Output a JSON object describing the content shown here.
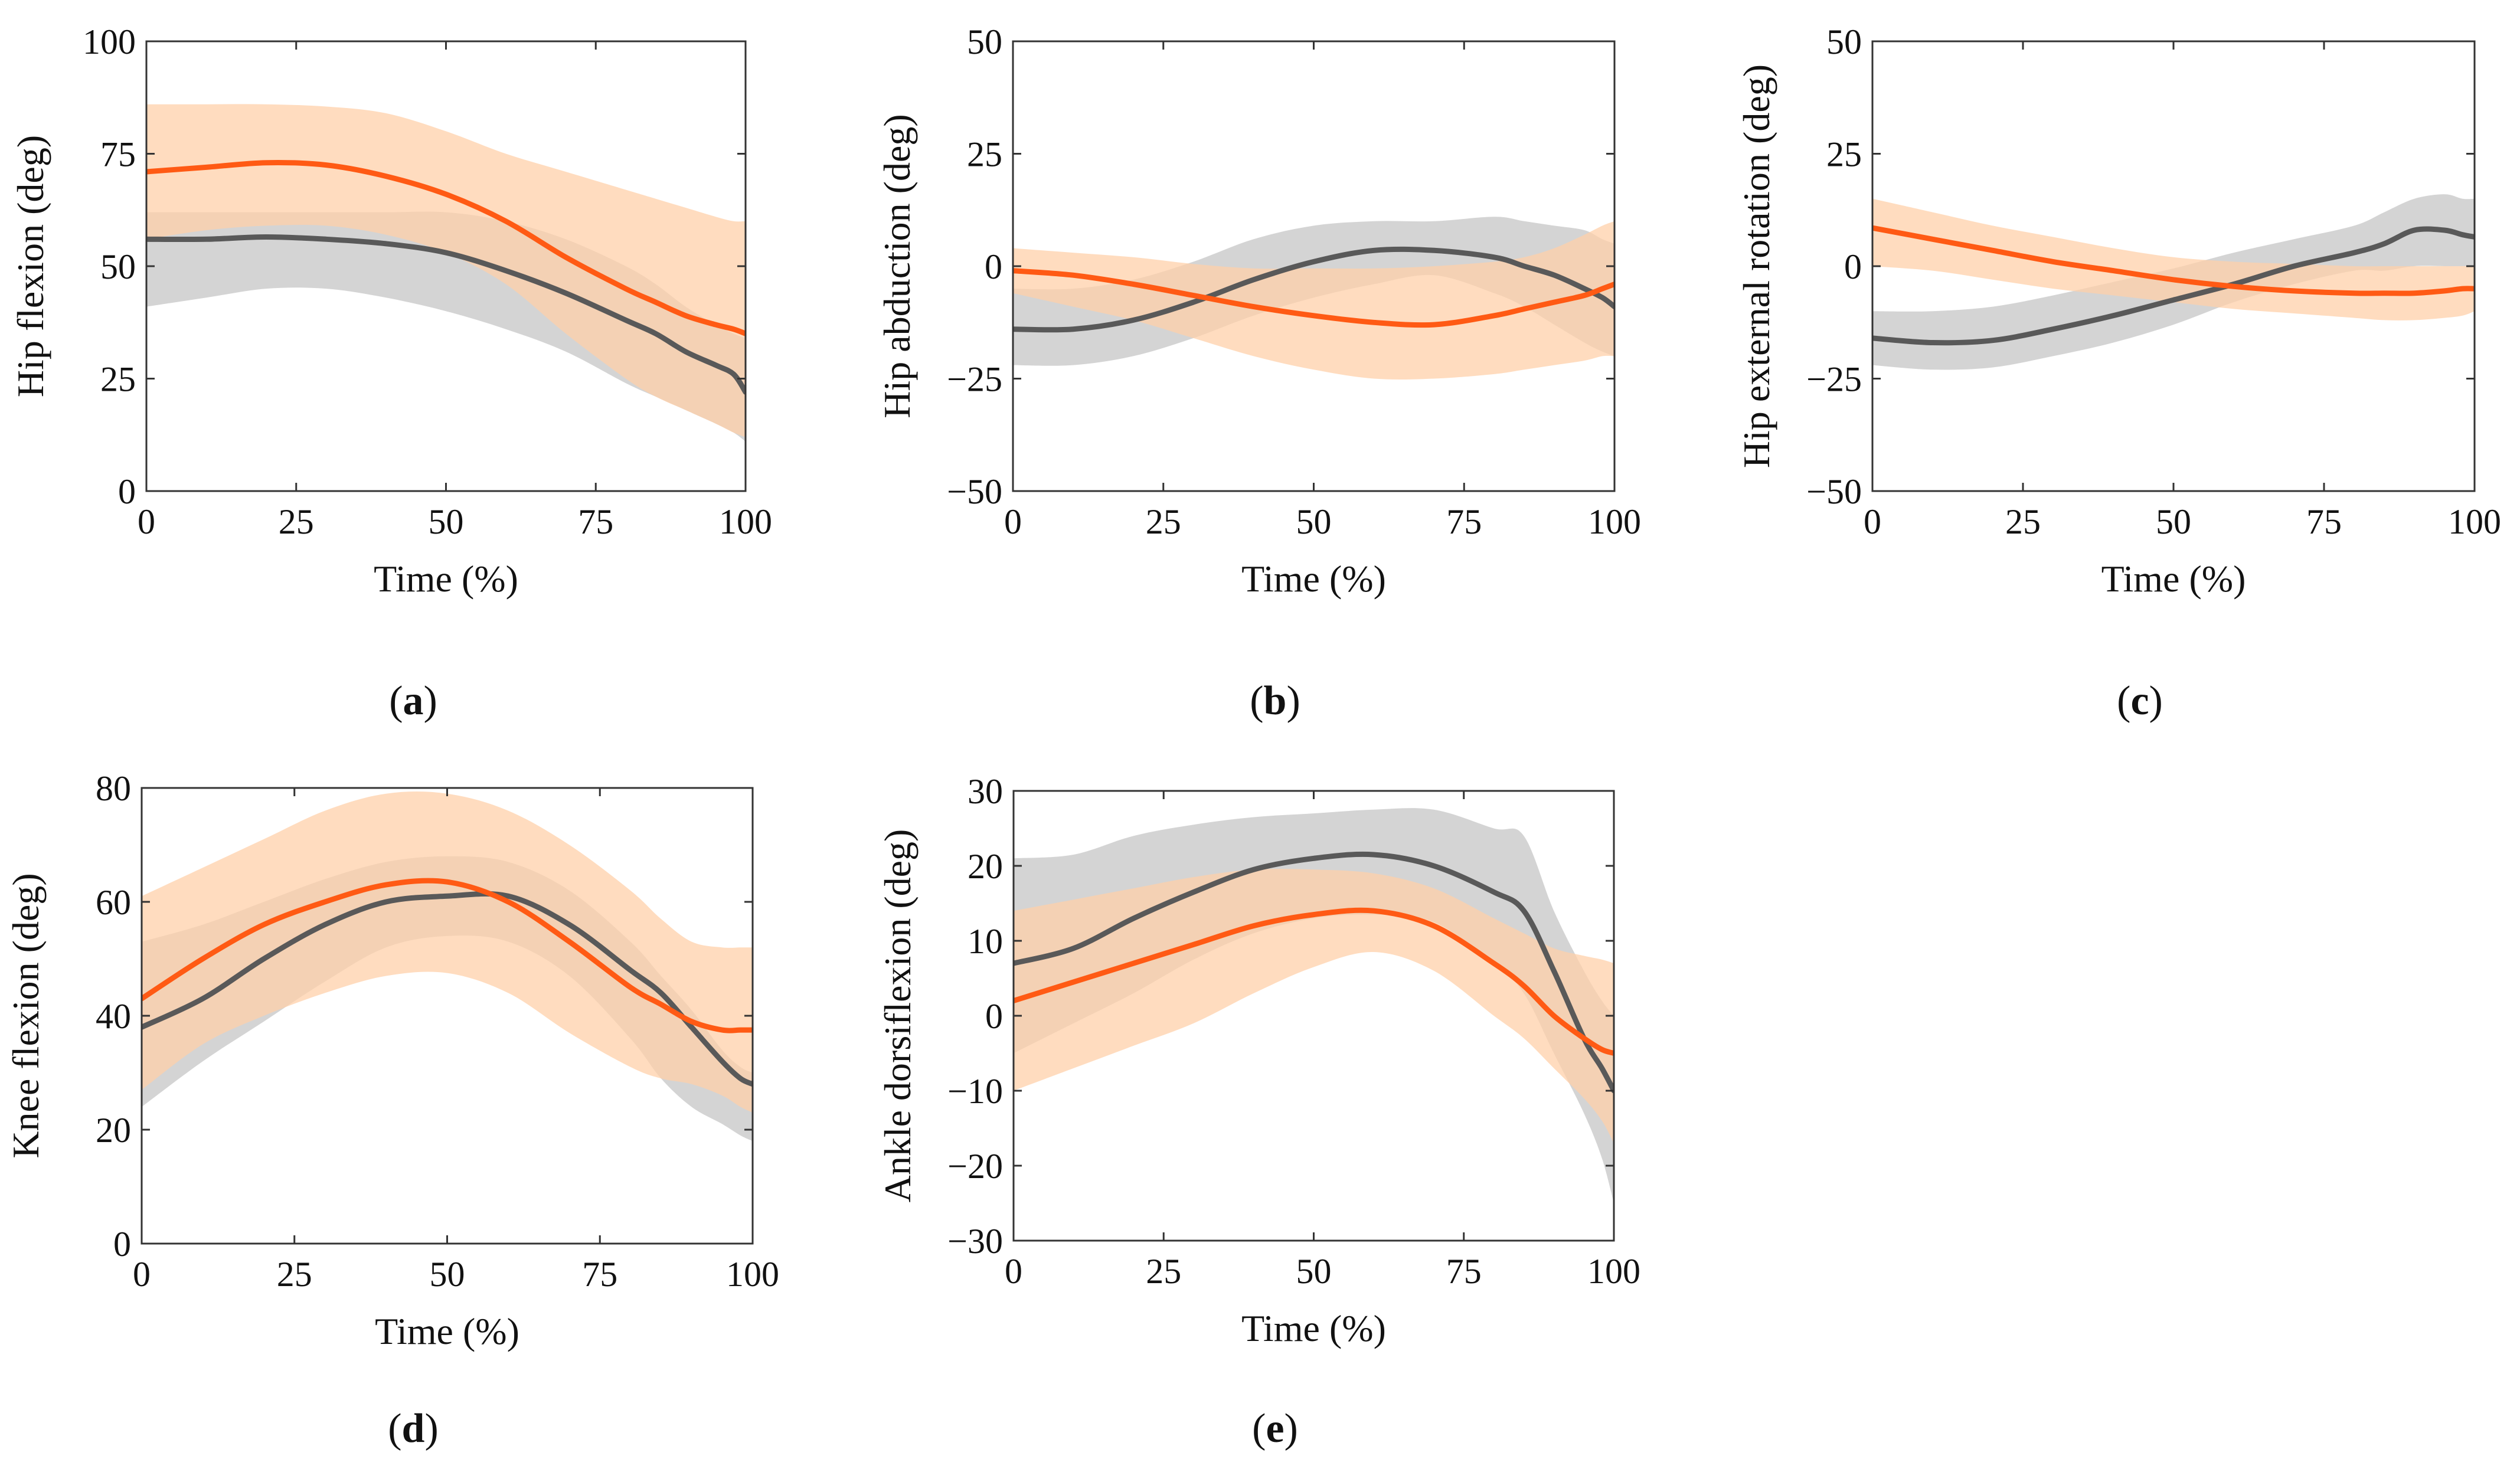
{
  "figure": {
    "type": "multi-panel line chart with shaded bands"
  },
  "colors": {
    "series_a_line": "#FF5A14",
    "series_a_band": "#FFD0AA",
    "series_b_line": "#595959",
    "series_b_band": "#CFCFCF",
    "background": "#FFFFFF"
  },
  "chart_data": [
    {
      "id": "a",
      "type": "line",
      "caption_open": "(",
      "caption_letter": "a",
      "caption_close": ")",
      "xlabel": "Time (%)",
      "ylabel": "Hip flexion  (deg)",
      "xlim": [
        0,
        100
      ],
      "ylim": [
        0,
        100
      ],
      "xticks": [
        0,
        25,
        50,
        75,
        100
      ],
      "yticks": [
        0,
        25,
        50,
        75,
        100
      ],
      "x": [
        0,
        10,
        20,
        30,
        40,
        50,
        60,
        70,
        80,
        85,
        90,
        95,
        98,
        100
      ],
      "series": [
        {
          "name": "series_a",
          "mean": [
            71,
            72,
            73,
            72.5,
            70,
            66,
            60,
            52,
            45,
            42,
            39,
            37,
            36,
            35
          ],
          "upper": [
            86,
            86,
            86,
            85.5,
            84,
            80,
            75,
            71,
            67,
            65,
            63,
            61,
            60,
            60
          ],
          "lower": [
            56,
            58,
            59,
            59,
            57,
            53,
            46,
            35,
            25,
            21,
            18,
            15,
            13,
            12
          ]
        },
        {
          "name": "series_b",
          "mean": [
            56,
            56,
            56.5,
            56,
            55,
            53,
            49,
            44,
            38,
            35,
            31,
            28,
            26,
            22
          ],
          "upper": [
            62,
            62,
            62,
            62,
            62,
            62,
            60,
            56,
            50,
            46,
            41,
            37,
            35,
            34
          ],
          "lower": [
            41,
            43,
            45,
            45,
            43,
            40,
            36,
            31,
            24,
            21,
            18,
            15,
            13,
            11
          ]
        }
      ]
    },
    {
      "id": "b",
      "type": "line",
      "caption_open": "(",
      "caption_letter": "b",
      "caption_close": ")",
      "xlabel": "Time (%)",
      "ylabel": "Hip abduction  (deg)",
      "xlim": [
        0,
        100
      ],
      "ylim": [
        -50,
        50
      ],
      "xticks": [
        0,
        25,
        50,
        75,
        100
      ],
      "yticks": [
        -50,
        -25,
        0,
        25,
        50
      ],
      "x": [
        0,
        10,
        20,
        30,
        40,
        50,
        60,
        70,
        80,
        85,
        90,
        95,
        98,
        100
      ],
      "series": [
        {
          "name": "series_a",
          "mean": [
            -1,
            -2,
            -4,
            -6.5,
            -9,
            -11,
            -12.5,
            -13,
            -11,
            -9.5,
            -8,
            -6.5,
            -5,
            -4
          ],
          "upper": [
            4,
            3,
            2,
            0.5,
            -0.5,
            -0.5,
            -0.5,
            0,
            1,
            2,
            4,
            7,
            9,
            10
          ],
          "lower": [
            -6,
            -9,
            -12,
            -16,
            -20,
            -23,
            -25,
            -25,
            -24,
            -23,
            -22,
            -21,
            -20,
            -20
          ]
        },
        {
          "name": "series_b",
          "mean": [
            -14,
            -14,
            -12,
            -8,
            -3,
            1,
            3.5,
            3.5,
            2,
            0,
            -2,
            -5,
            -7,
            -9
          ],
          "upper": [
            -5,
            -5,
            -3,
            1,
            6,
            9,
            10,
            10,
            11,
            10,
            9,
            8,
            6,
            5
          ],
          "lower": [
            -22,
            -22,
            -20,
            -16,
            -11,
            -7,
            -4,
            -2,
            -6,
            -9,
            -13,
            -17,
            -19,
            -20
          ]
        }
      ]
    },
    {
      "id": "c",
      "type": "line",
      "caption_open": "(",
      "caption_letter": "c",
      "caption_close": ")",
      "xlabel": "Time (%)",
      "ylabel": "Hip external rotation  (deg)",
      "xlim": [
        0,
        100
      ],
      "ylim": [
        -50,
        50
      ],
      "xticks": [
        0,
        25,
        50,
        75,
        100
      ],
      "yticks": [
        -50,
        -25,
        0,
        25,
        50
      ],
      "x": [
        0,
        10,
        20,
        30,
        40,
        50,
        60,
        70,
        80,
        85,
        90,
        95,
        98,
        100
      ],
      "series": [
        {
          "name": "series_a",
          "mean": [
            8.5,
            6,
            3.5,
            1,
            -1,
            -3,
            -4.5,
            -5.5,
            -6,
            -6,
            -6,
            -5.5,
            -5,
            -5
          ],
          "upper": [
            15,
            12,
            9,
            6.5,
            4,
            2,
            1,
            0.5,
            0,
            0,
            0,
            0,
            0,
            0
          ],
          "lower": [
            0,
            -1,
            -3,
            -5,
            -6.5,
            -8,
            -9.5,
            -10.5,
            -11.5,
            -12,
            -12,
            -11.5,
            -11,
            -10
          ]
        },
        {
          "name": "series_b",
          "mean": [
            -16,
            -17,
            -16.5,
            -14,
            -11,
            -7.5,
            -4,
            0,
            3,
            5,
            8,
            8,
            7,
            6.5
          ],
          "upper": [
            -10,
            -10,
            -9,
            -6.5,
            -3.5,
            -0.5,
            3,
            6,
            9,
            12,
            15,
            16,
            15,
            15
          ],
          "lower": [
            -22,
            -23,
            -22.5,
            -20,
            -17,
            -13,
            -8,
            -4,
            -1,
            -1,
            0,
            0,
            0,
            0
          ]
        }
      ]
    },
    {
      "id": "d",
      "type": "line",
      "caption_open": "(",
      "caption_letter": "d",
      "caption_close": ")",
      "xlabel": "Time (%)",
      "ylabel": "Knee flexion  (deg)",
      "xlim": [
        0,
        100
      ],
      "ylim": [
        0,
        80
      ],
      "xticks": [
        0,
        25,
        50,
        75,
        100
      ],
      "yticks": [
        0,
        20,
        40,
        60,
        80
      ],
      "x": [
        0,
        10,
        20,
        30,
        40,
        50,
        60,
        70,
        80,
        85,
        90,
        95,
        98,
        100
      ],
      "series": [
        {
          "name": "series_a",
          "mean": [
            43,
            50,
            56,
            60,
            63,
            63.5,
            60,
            53,
            45,
            42,
            39,
            37.5,
            37.5,
            37.5
          ],
          "upper": [
            61,
            66,
            71,
            76,
            79,
            79,
            76,
            70,
            62,
            57,
            53,
            52,
            52,
            52
          ],
          "lower": [
            27,
            35,
            40,
            44,
            47,
            47.5,
            44,
            37,
            31,
            29,
            28,
            26,
            24,
            23
          ]
        },
        {
          "name": "series_b",
          "mean": [
            38,
            43,
            50,
            56,
            60,
            61,
            61,
            56,
            48,
            44,
            38,
            32,
            29,
            28
          ],
          "upper": [
            53,
            56,
            60,
            64,
            67,
            68,
            67,
            62,
            53,
            47,
            41,
            34,
            31,
            30
          ],
          "lower": [
            24,
            32,
            39,
            46,
            52,
            54,
            53,
            47,
            36,
            29,
            24,
            21,
            19,
            18
          ]
        }
      ]
    },
    {
      "id": "e",
      "type": "line",
      "caption_open": "(",
      "caption_letter": "e",
      "caption_close": ")",
      "xlabel": "Time (%)",
      "ylabel": "Ankle dorsiflexion  (deg)",
      "xlim": [
        0,
        100
      ],
      "ylim": [
        -30,
        30
      ],
      "xticks": [
        0,
        25,
        50,
        75,
        100
      ],
      "yticks": [
        -30,
        -20,
        -10,
        0,
        10,
        20,
        30
      ],
      "x": [
        0,
        10,
        20,
        30,
        40,
        50,
        60,
        70,
        80,
        85,
        90,
        95,
        98,
        100
      ],
      "series": [
        {
          "name": "series_a",
          "mean": [
            2,
            4.5,
            7,
            9.5,
            12,
            13.5,
            14,
            12,
            7,
            4,
            0,
            -3,
            -4.5,
            -5
          ],
          "upper": [
            14,
            15.5,
            17,
            18.5,
            19.5,
            19.5,
            19,
            17,
            13,
            11,
            9,
            8,
            7.5,
            7
          ],
          "lower": [
            -10,
            -7,
            -4,
            -1,
            3,
            6.5,
            8.5,
            6,
            0,
            -3,
            -7,
            -11,
            -14,
            -17
          ]
        },
        {
          "name": "series_b",
          "mean": [
            7,
            9,
            13,
            16.5,
            19.5,
            21,
            21.5,
            20,
            16.5,
            14,
            6,
            -3,
            -7,
            -10
          ],
          "upper": [
            21,
            21.5,
            24,
            25.5,
            26.5,
            27,
            27.5,
            27.5,
            25,
            24,
            14,
            6,
            2,
            0
          ],
          "lower": [
            -5,
            -1,
            3,
            7.5,
            11,
            13,
            13.5,
            12.5,
            7,
            3,
            -5,
            -13,
            -19,
            -25
          ]
        }
      ]
    }
  ]
}
